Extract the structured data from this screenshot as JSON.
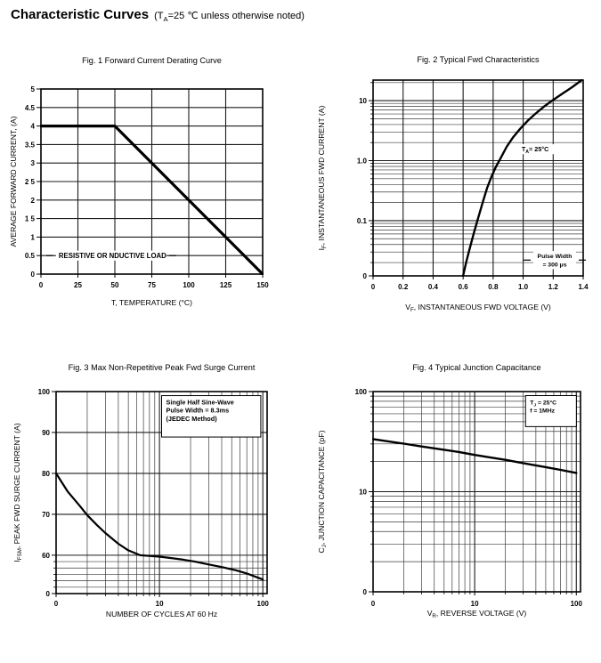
{
  "page": {
    "title": "Characteristic Curves",
    "note": "(T~A~=25 ℃ unless otherwise noted)"
  },
  "chart_data": [
    {
      "type": "line",
      "title": "Fig. 1 Forward Current Derating Curve",
      "xlabel": "T, TEMPERATURE (°C)",
      "ylabel": "AVERAGE FORWARD CURRENT, (A)",
      "x_axis": {
        "type": "linear",
        "min": 0,
        "max": 150,
        "ticks": [
          {
            "v": 0,
            "label": "0"
          },
          {
            "v": 25,
            "label": "25"
          },
          {
            "v": 50,
            "label": "50"
          },
          {
            "v": 75,
            "label": "75"
          },
          {
            "v": 100,
            "label": "100"
          },
          {
            "v": 125,
            "label": "125"
          },
          {
            "v": 150,
            "label": "150"
          }
        ]
      },
      "y_axis": {
        "type": "linear",
        "min": 0,
        "max": 5,
        "ticks": [
          {
            "v": 5,
            "label": "5"
          },
          {
            "v": 4.5,
            "label": "4.5"
          },
          {
            "v": 4,
            "label": "4"
          },
          {
            "v": 3.5,
            "label": "3.5"
          },
          {
            "v": 3,
            "label": "3"
          },
          {
            "v": 2.5,
            "label": "2 5"
          },
          {
            "v": 2,
            "label": "2"
          },
          {
            "v": 1.5,
            "label": "1 5"
          },
          {
            "v": 1,
            "label": "1"
          },
          {
            "v": 0.5,
            "label": "0.5"
          },
          {
            "v": 0,
            "label": "0"
          }
        ]
      },
      "grids": {
        "x_major": [
          25,
          50,
          75,
          100,
          125
        ],
        "x_minor": [],
        "y_major": [
          0.5,
          1,
          1.5,
          2,
          2.5,
          3,
          3.5,
          4,
          4.5
        ],
        "y_minor": []
      },
      "series": [
        {
          "name": "forward-current-derating",
          "points": [
            [
              0,
              4
            ],
            [
              50,
              4
            ],
            [
              150,
              0
            ]
          ]
        }
      ],
      "stroke_w": 3.2,
      "annotations": [
        {
          "text": "RESISTIVE OR  NDUCTIVE LOAD",
          "x": 12,
          "y": 0.5,
          "align": "start",
          "dashes": true,
          "size": 7.8,
          "weight": 600
        }
      ]
    },
    {
      "type": "line",
      "title": "Fig. 2 Typical Fwd Characteristics",
      "xlabel": "V~F~, INSTANTANEOUS FWD VOLTAGE (V)",
      "ylabel": "I~F~, INSTANTANEOUS FWD CURRENT (A)",
      "x_axis": {
        "type": "linear",
        "min": 0,
        "max": 1.4,
        "ticks": [
          {
            "v": 0,
            "label": "0"
          },
          {
            "v": 0.2,
            "label": "0.2"
          },
          {
            "v": 0.4,
            "label": "0.4"
          },
          {
            "v": 0.6,
            "label": "0.6"
          },
          {
            "v": 0.8,
            "label": "0.8"
          },
          {
            "v": 1,
            "label": "1.0"
          },
          {
            "v": 1.2,
            "label": "1.2"
          },
          {
            "v": 1.4,
            "label": "1.4"
          }
        ]
      },
      "y_axis": {
        "type": "log",
        "min": 0.012,
        "max": 22,
        "minor_stubs": true,
        "ticks": [
          {
            "v": 10,
            "label": "10"
          },
          {
            "v": 1,
            "label": "1.0"
          },
          {
            "v": 0.1,
            "label": "0.1"
          },
          {
            "v": 0.012,
            "label": "0"
          }
        ]
      },
      "grids": {
        "x_major": [
          0.2,
          0.4,
          0.6,
          0.8,
          1,
          1.2
        ],
        "x_minor": [],
        "y_major": [
          0.1,
          1,
          10
        ],
        "y_minor": [
          0.02,
          0.03,
          0.04,
          0.05,
          0.06,
          0.07,
          0.08,
          0.09,
          0.2,
          0.3,
          0.4,
          0.5,
          0.6,
          0.7,
          0.8,
          0.9,
          2,
          3,
          4,
          5,
          6,
          7,
          8,
          9,
          20
        ]
      },
      "series": [
        {
          "name": "fwd-characteristic",
          "points": [
            [
              0.6,
              0.012
            ],
            [
              0.62,
              0.02
            ],
            [
              0.645,
              0.035
            ],
            [
              0.67,
              0.06
            ],
            [
              0.7,
              0.11
            ],
            [
              0.73,
              0.2
            ],
            [
              0.76,
              0.35
            ],
            [
              0.79,
              0.55
            ],
            [
              0.82,
              0.8
            ],
            [
              0.85,
              1.1
            ],
            [
              0.89,
              1.7
            ],
            [
              0.93,
              2.4
            ],
            [
              0.98,
              3.4
            ],
            [
              1.03,
              4.6
            ],
            [
              1.08,
              6.0
            ],
            [
              1.14,
              8.0
            ],
            [
              1.2,
              10.3
            ],
            [
              1.27,
              13.5
            ],
            [
              1.33,
              17
            ],
            [
              1.39,
              22
            ]
          ]
        }
      ],
      "stroke_w": 2.4,
      "annotations": [
        {
          "text": "T~A~=  25°C",
          "x": 0.99,
          "y": 1.55,
          "align": "start",
          "size": 7.2,
          "weight": 700
        },
        {
          "lines": [
            "Pulse Width",
            "=  300 μs"
          ],
          "x": 1.21,
          "y": 0.022,
          "align": "middle",
          "dashes": true,
          "size": 6.8,
          "weight": 600
        }
      ]
    },
    {
      "type": "line",
      "title": "Fig. 3 Max Non-Repetitive Peak Fwd Surge Current",
      "xlabel": "NUMBER OF CYCLES AT 60 Hz",
      "ylabel": "I~FSM~, PEAK FWD SURGE CURRENT (A)",
      "x_axis": {
        "type": "log",
        "min": 1,
        "max": 110,
        "minor_stubs": true,
        "ticks": [
          {
            "v": 1,
            "label": "0"
          },
          {
            "v": 10,
            "label": "10"
          },
          {
            "v": 100,
            "label": "100"
          }
        ]
      },
      "y_axis": {
        "type": "anchors",
        "anchors": [
          [
            100,
            0
          ],
          [
            60,
            0.81
          ],
          [
            0,
            1
          ]
        ],
        "minor_stubs": true,
        "ticks": [
          {
            "v": 100,
            "label": "100"
          },
          {
            "v": 90,
            "label": "90"
          },
          {
            "v": 80,
            "label": "80"
          },
          {
            "v": 70,
            "label": "70"
          },
          {
            "v": 60,
            "label": "60"
          },
          {
            "v": 0,
            "label": "0"
          }
        ]
      },
      "grids": {
        "x_major": [
          10,
          100
        ],
        "x_minor": [
          2,
          3,
          4,
          5,
          6,
          7,
          8,
          9,
          20,
          30,
          40,
          50,
          60,
          70,
          80,
          90
        ],
        "y_major": [
          60,
          70,
          80,
          90
        ],
        "y_minor": [
          50,
          40,
          30,
          20,
          10
        ]
      },
      "series": [
        {
          "name": "peak-surge-current",
          "points": [
            [
              1,
              80
            ],
            [
              1.3,
              75.5
            ],
            [
              1.7,
              72
            ],
            [
              2,
              69.8
            ],
            [
              2.5,
              67.3
            ],
            [
              3,
              65.4
            ],
            [
              4,
              62.8
            ],
            [
              5,
              61.2
            ],
            [
              6.5,
              59.9
            ],
            [
              8,
              58.9
            ],
            [
              10,
              57.8
            ],
            [
              13,
              55.5
            ],
            [
              17,
              53
            ],
            [
              22,
              50
            ],
            [
              30,
              45.5
            ],
            [
              40,
              41.5
            ],
            [
              55,
              36.5
            ],
            [
              70,
              31.5
            ],
            [
              100,
              22
            ]
          ]
        }
      ],
      "stroke_w": 2.2,
      "annotations": [
        {
          "box": true,
          "fx": 0.5,
          "fy": 0.02,
          "fw": 0.47,
          "fh": 0.205,
          "lines": [
            "Single Half Sine-Wave",
            "Pulse Width = 8.3ms",
            "(JEDEC Method)"
          ],
          "size": 7.3,
          "weight": 700
        }
      ]
    },
    {
      "type": "line",
      "title": "Fig. 4 Typical Junction Capacitance",
      "xlabel": "V~R~, REVERSE VOLTAGE (V)",
      "ylabel": "C~J~, JUNCTION CAPACITANCE (pF)",
      "x_axis": {
        "type": "log",
        "min": 1,
        "max": 110,
        "minor_stubs": true,
        "ticks": [
          {
            "v": 1,
            "label": "0"
          },
          {
            "v": 10,
            "label": "10"
          },
          {
            "v": 100,
            "label": "100"
          }
        ]
      },
      "y_axis": {
        "type": "log",
        "min": 1,
        "max": 100,
        "minor_stubs": true,
        "ticks": [
          {
            "v": 100,
            "label": "100"
          },
          {
            "v": 10,
            "label": "10"
          },
          {
            "v": 1,
            "label": "0"
          }
        ]
      },
      "grids": {
        "x_major": [
          10,
          100
        ],
        "x_minor": [
          2,
          3,
          4,
          5,
          6,
          7,
          8,
          9,
          20,
          30,
          40,
          50,
          60,
          70,
          80,
          90
        ],
        "y_major": [
          10
        ],
        "y_minor": [
          2,
          3,
          4,
          5,
          6,
          7,
          8,
          9,
          20,
          30,
          40,
          50,
          60,
          70,
          80,
          90
        ]
      },
      "series": [
        {
          "name": "junction-capacitance",
          "points": [
            [
              1,
              33.5
            ],
            [
              1.5,
              31.5
            ],
            [
              2,
              30.2
            ],
            [
              3,
              28.3
            ],
            [
              5,
              26.2
            ],
            [
              7,
              24.9
            ],
            [
              10,
              23.3
            ],
            [
              15,
              21.8
            ],
            [
              20,
              20.8
            ],
            [
              30,
              19.3
            ],
            [
              50,
              17.6
            ],
            [
              70,
              16.5
            ],
            [
              100,
              15.4
            ]
          ]
        }
      ],
      "stroke_w": 2.4,
      "annotations": [
        {
          "box": true,
          "fx": 0.735,
          "fy": 0.02,
          "fw": 0.245,
          "fh": 0.155,
          "lines": [
            "T~J~ = 25°C",
            "f = 1MHz"
          ],
          "size": 6.8,
          "weight": 700
        }
      ]
    }
  ]
}
